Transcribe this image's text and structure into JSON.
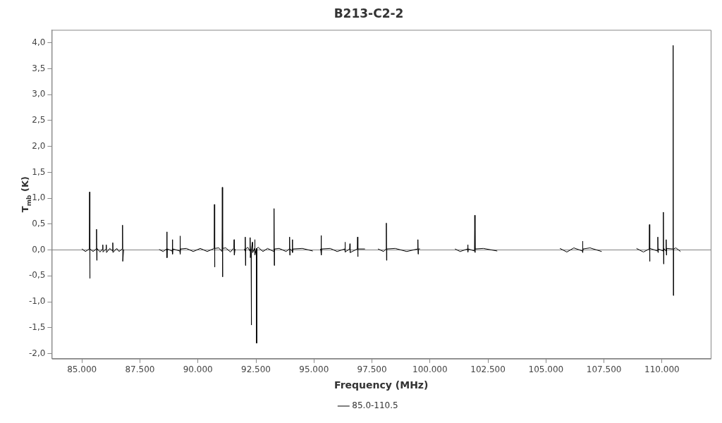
{
  "chart_data": {
    "type": "line",
    "title": "B213-C2-2",
    "xlabel": "Frequency (MHz)",
    "ylabel": "T$_{mb}$ (K)",
    "xlim": [
      83700,
      112100
    ],
    "ylim": [
      -2.1,
      4.25
    ],
    "xticks": [
      {
        "value": 85000,
        "label": "85.000"
      },
      {
        "value": 87500,
        "label": "87.500"
      },
      {
        "value": 90000,
        "label": "90.000"
      },
      {
        "value": 92500,
        "label": "92.500"
      },
      {
        "value": 95000,
        "label": "95.000"
      },
      {
        "value": 97500,
        "label": "97.500"
      },
      {
        "value": 100000,
        "label": "100.000"
      },
      {
        "value": 102500,
        "label": "102.500"
      },
      {
        "value": 105000,
        "label": "105.000"
      },
      {
        "value": 107500,
        "label": "107.500"
      },
      {
        "value": 110000,
        "label": "110.000"
      }
    ],
    "yticks": [
      {
        "value": -2,
        "label": "-2,0"
      },
      {
        "value": -1.5,
        "label": "-1,5"
      },
      {
        "value": -1,
        "label": "-1,0"
      },
      {
        "value": -0.5,
        "label": "-0,5"
      },
      {
        "value": 0,
        "label": "0,0"
      },
      {
        "value": 0.5,
        "label": "0,5"
      },
      {
        "value": 1,
        "label": "1,0"
      },
      {
        "value": 1.5,
        "label": "1,5"
      },
      {
        "value": 2,
        "label": "2,0"
      },
      {
        "value": 2.5,
        "label": "2,5"
      },
      {
        "value": 3,
        "label": "3,0"
      },
      {
        "value": 3.5,
        "label": "3,5"
      },
      {
        "value": 4,
        "label": "4,0"
      }
    ],
    "grid": false,
    "legend": "bottom",
    "marker": "none",
    "line_style": "solid",
    "ref_lines": [
      {
        "axis": "y",
        "value": 0,
        "color": "#808080"
      }
    ],
    "series": [
      {
        "name": "85.0-110.5",
        "color": "#000000",
        "x": [
          85000,
          85150,
          85320,
          85330,
          85340,
          85350,
          85480,
          85620,
          85630,
          85640,
          85650,
          85780,
          85890,
          85900,
          85910,
          86040,
          86050,
          86060,
          86200,
          86320,
          86330,
          86340,
          86500,
          86600,
          86740,
          86750,
          86760,
          86800,
          87500,
          88330,
          88500,
          88650,
          88660,
          88670,
          88680,
          88890,
          88900,
          88910,
          88920,
          89220,
          89230,
          89240,
          89250,
          89500,
          89800,
          90100,
          90400,
          90700,
          90710,
          90720,
          90730,
          90900,
          91040,
          91050,
          91060,
          91070,
          91200,
          91400,
          91550,
          91560,
          91570,
          91600,
          91800,
          92000,
          92030,
          92040,
          92050,
          92060,
          92150,
          92240,
          92250,
          92260,
          92290,
          92300,
          92310,
          92350,
          92360,
          92440,
          92450,
          92460,
          92520,
          92530,
          92540,
          92600,
          92800,
          93000,
          93270,
          93280,
          93290,
          93300,
          93500,
          93800,
          93940,
          93950,
          93960,
          93970,
          94060,
          94070,
          94080,
          94090,
          94500,
          94950,
          95100,
          95280,
          95300,
          95310,
          95320,
          95330,
          95700,
          96000,
          96330,
          96340,
          96350,
          96540,
          96550,
          96560,
          96870,
          96880,
          96890,
          96900,
          97200,
          97500,
          97760,
          98000,
          98110,
          98120,
          98130,
          98140,
          98500,
          99000,
          99470,
          99480,
          99490,
          99500,
          99570,
          100300,
          101080,
          101300,
          101620,
          101630,
          101640,
          101650,
          101920,
          101930,
          101940,
          101950,
          102300,
          102900,
          104000,
          105600,
          105900,
          106200,
          106570,
          106580,
          106590,
          106600,
          106900,
          107400,
          108000,
          108900,
          109200,
          109450,
          109460,
          109470,
          109480,
          109810,
          109820,
          109830,
          109840,
          110050,
          110060,
          110070,
          110080,
          110170,
          110180,
          110190,
          110200,
          110460,
          110480,
          110490,
          110500,
          110600,
          110800
        ],
        "values": [
          0.02,
          -0.03,
          0.02,
          1.12,
          -0.55,
          0.02,
          -0.03,
          0.02,
          0.4,
          -0.2,
          0.03,
          -0.04,
          0.02,
          0.1,
          -0.04,
          0.02,
          0.1,
          -0.05,
          0.03,
          -0.02,
          0.14,
          -0.05,
          0.03,
          -0.03,
          0.02,
          0.48,
          -0.22,
          0.01,
          null,
          0.01,
          -0.03,
          0.02,
          0.35,
          -0.15,
          0.02,
          -0.02,
          0.2,
          -0.08,
          0.02,
          -0.02,
          0.27,
          -0.08,
          0.02,
          0.03,
          -0.03,
          0.03,
          -0.03,
          0.03,
          0.88,
          -0.33,
          0.03,
          0.04,
          -0.03,
          1.21,
          -0.52,
          0.03,
          0.04,
          -0.04,
          0.04,
          0.2,
          -0.1,
          0.02,
          null,
          0.02,
          -0.02,
          0.25,
          -0.3,
          0.02,
          0.05,
          -0.02,
          0.24,
          -0.15,
          0.02,
          -1.45,
          0.02,
          0.15,
          -0.05,
          0.03,
          0.2,
          -0.1,
          0.03,
          -1.8,
          0.03,
          0.05,
          -0.03,
          0.03,
          -0.03,
          0.8,
          -0.3,
          0.02,
          0.03,
          -0.03,
          0.02,
          0.25,
          -0.1,
          0.02,
          -0.02,
          0.2,
          -0.05,
          0.02,
          0.03,
          -0.02,
          null,
          0.02,
          -0.02,
          0.28,
          -0.1,
          0.02,
          0.03,
          -0.03,
          0.02,
          0.15,
          -0.04,
          0.02,
          0.12,
          -0.05,
          0.02,
          0.25,
          -0.13,
          0.02,
          0.02,
          null,
          0.02,
          -0.03,
          0.02,
          0.52,
          -0.2,
          0.02,
          0.03,
          -0.03,
          0.02,
          0.2,
          -0.08,
          0.02,
          0.02,
          null,
          0.02,
          -0.03,
          0.02,
          0.1,
          -0.04,
          0.02,
          -0.02,
          0.67,
          -0.05,
          0.02,
          0.03,
          -0.02,
          null,
          0.03,
          -0.04,
          0.04,
          -0.02,
          0.17,
          -0.05,
          0.02,
          0.04,
          -0.03,
          null,
          0.03,
          -0.04,
          0.02,
          0.49,
          -0.22,
          0.03,
          -0.02,
          0.25,
          -0.05,
          0.02,
          -0.02,
          0.73,
          -0.27,
          0.03,
          -0.02,
          0.2,
          -0.1,
          0.03,
          0.02,
          3.95,
          -0.88,
          0.02,
          0.04,
          -0.03
        ]
      }
    ]
  }
}
